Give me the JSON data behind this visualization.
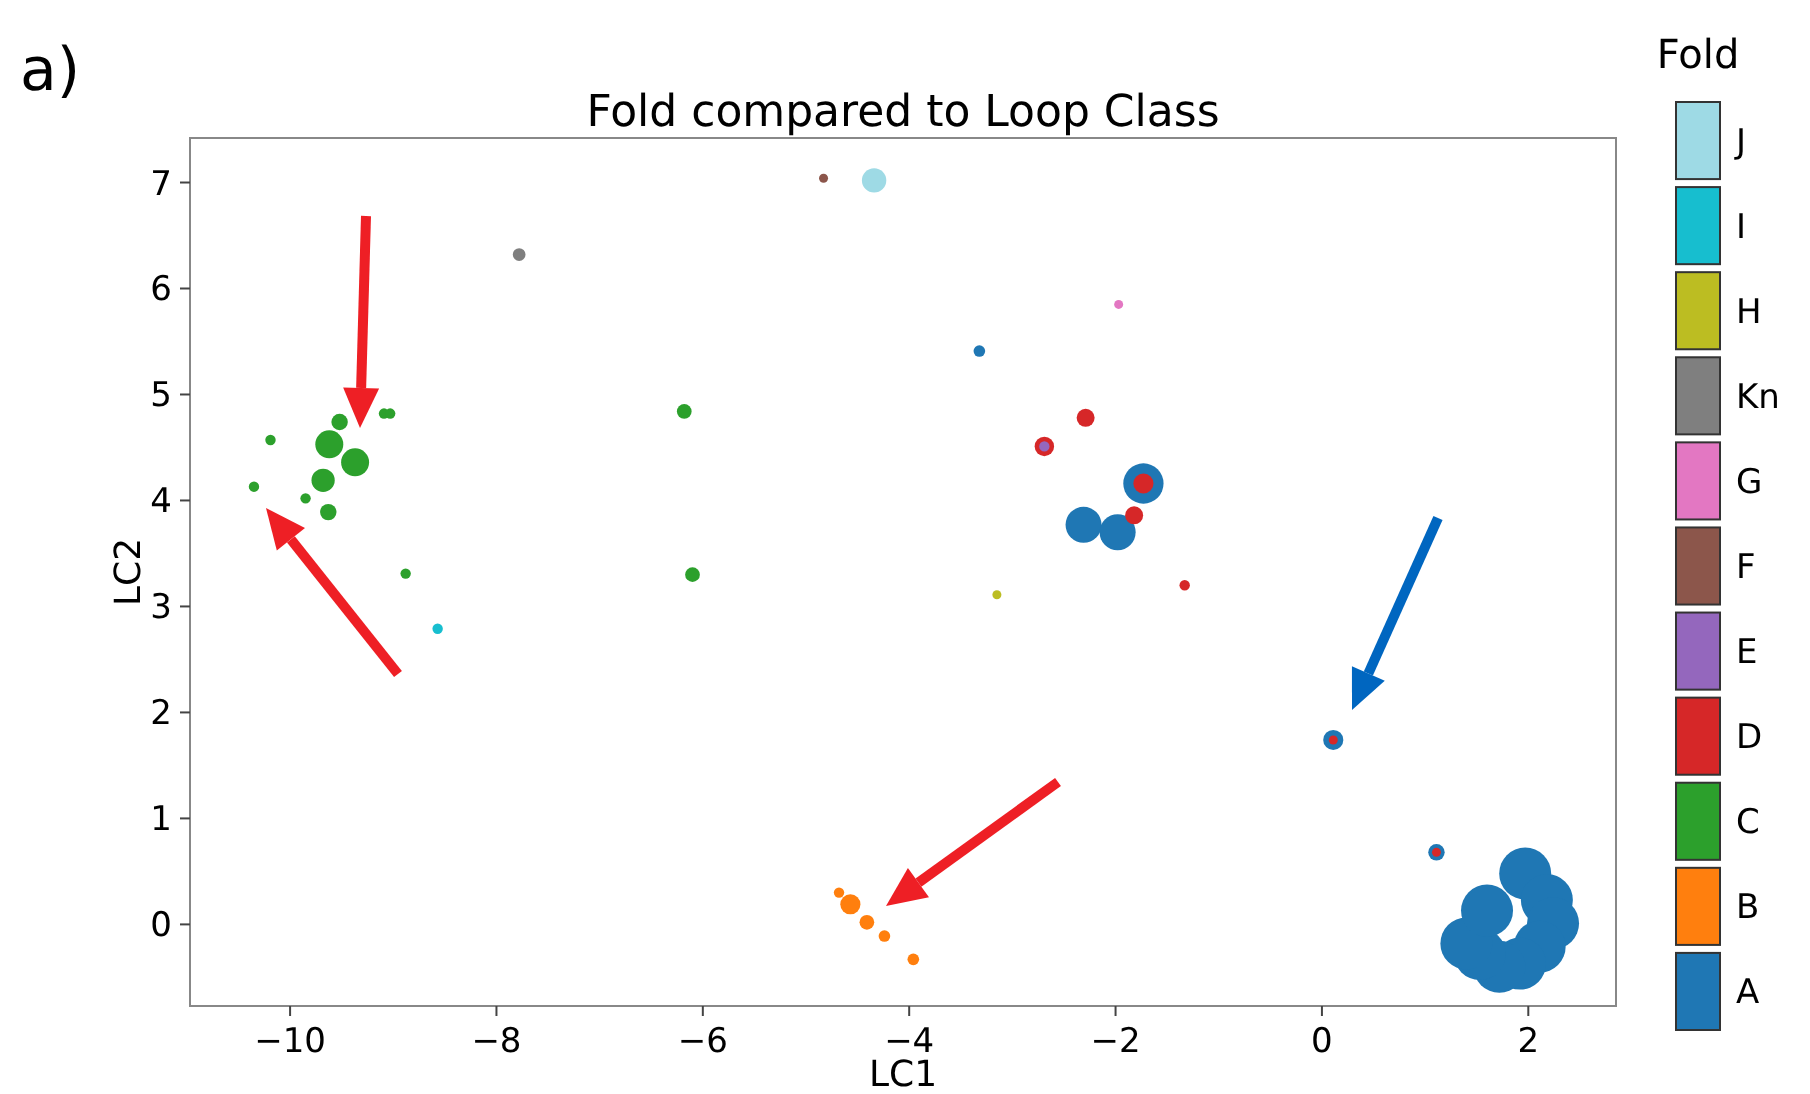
{
  "chart_data": {
    "type": "bubble",
    "title": "Fold compared to Loop Class",
    "xlabel": "LC1",
    "ylabel": "LC2",
    "legend_title": "Fold",
    "annotations": [
      "a)"
    ],
    "xlim": [
      -10.97,
      2.85
    ],
    "ylim": [
      -0.77,
      7.42
    ],
    "xticks": [
      {
        "value": -10,
        "label": "−10"
      },
      {
        "value": -8,
        "label": "−8"
      },
      {
        "value": -6,
        "label": "−6"
      },
      {
        "value": -4,
        "label": "−4"
      },
      {
        "value": -2,
        "label": "−2"
      },
      0,
      2
    ],
    "yticks": [
      0,
      1,
      2,
      3,
      4,
      5,
      6,
      7
    ],
    "grid": false,
    "legend": "right",
    "marker": "circle",
    "series": [
      {
        "name": "A",
        "color": "#1f77b4",
        "x": [
          -3.32,
          -1.73,
          -2.31,
          -1.98,
          0.11,
          1.11,
          1.97,
          2.18,
          2.24,
          2.11,
          1.92,
          1.72,
          1.53,
          1.4,
          1.6
        ],
        "values": [
          5.41,
          4.16,
          3.77,
          3.7,
          1.74,
          0.68,
          0.48,
          0.23,
          0.01,
          -0.21,
          -0.37,
          -0.4,
          -0.28,
          -0.18,
          0.13
        ],
        "sizes": [
          0.05,
          0.6,
          0.48,
          0.48,
          0.15,
          0.1,
          1,
          1,
          1,
          1,
          1,
          1,
          1,
          1,
          1
        ]
      },
      {
        "name": "B",
        "color": "#ff7f0e",
        "x": [
          -4.68,
          -4.57,
          -4.41,
          -4.24,
          -3.96
        ],
        "values": [
          0.3,
          0.19,
          0.02,
          -0.11,
          -0.33
        ],
        "sizes": [
          0.04,
          0.15,
          0.08,
          0.05,
          0.05
        ]
      },
      {
        "name": "C",
        "color": "#2ca02c",
        "x": [
          -9.09,
          -9.03,
          -9.52,
          -9.62,
          -9.37,
          -9.68,
          -10.19,
          -10.35,
          -9.85,
          -9.63,
          -8.88,
          -6.18,
          -6.1
        ],
        "values": [
          4.82,
          4.82,
          4.74,
          4.53,
          4.36,
          4.19,
          4.57,
          4.13,
          4.02,
          3.89,
          3.31,
          4.84,
          3.3
        ],
        "sizes": [
          0.04,
          0.04,
          0.1,
          0.29,
          0.29,
          0.2,
          0.04,
          0.04,
          0.04,
          0.1,
          0.04,
          0.08,
          0.08
        ]
      },
      {
        "name": "D",
        "color": "#d62728",
        "x": [
          -2.29,
          -2.69,
          -1.73,
          -1.82,
          -1.33,
          0.11,
          1.11
        ],
        "values": [
          4.78,
          4.51,
          4.16,
          3.86,
          3.2,
          1.74,
          0.68
        ],
        "sizes": [
          0.12,
          0.14,
          0.15,
          0.12,
          0.04,
          0.03,
          0.03
        ]
      },
      {
        "name": "E",
        "color": "#9467bd",
        "x": [
          -2.69
        ],
        "values": [
          4.51
        ],
        "sizes": [
          0.04
        ]
      },
      {
        "name": "F",
        "color": "#8c564b",
        "x": [
          -4.83
        ],
        "values": [
          7.04
        ],
        "sizes": [
          0.03
        ]
      },
      {
        "name": "G",
        "color": "#e377c2",
        "x": [
          -1.97
        ],
        "values": [
          5.85
        ],
        "sizes": [
          0.03
        ]
      },
      {
        "name": "Kn",
        "color": "#7f7f7f",
        "x": [
          -7.78
        ],
        "values": [
          6.32
        ],
        "sizes": [
          0.06
        ]
      },
      {
        "name": "H",
        "color": "#bcbd22",
        "x": [
          -3.15
        ],
        "values": [
          3.11
        ],
        "sizes": [
          0.03
        ]
      },
      {
        "name": "I",
        "color": "#17becf",
        "x": [
          -8.57
        ],
        "values": [
          2.79
        ],
        "sizes": [
          0.04
        ]
      },
      {
        "name": "J",
        "color": "#9edae5",
        "x": [
          -4.34
        ],
        "values": [
          7.02
        ],
        "sizes": [
          0.22
        ]
      }
    ]
  }
}
